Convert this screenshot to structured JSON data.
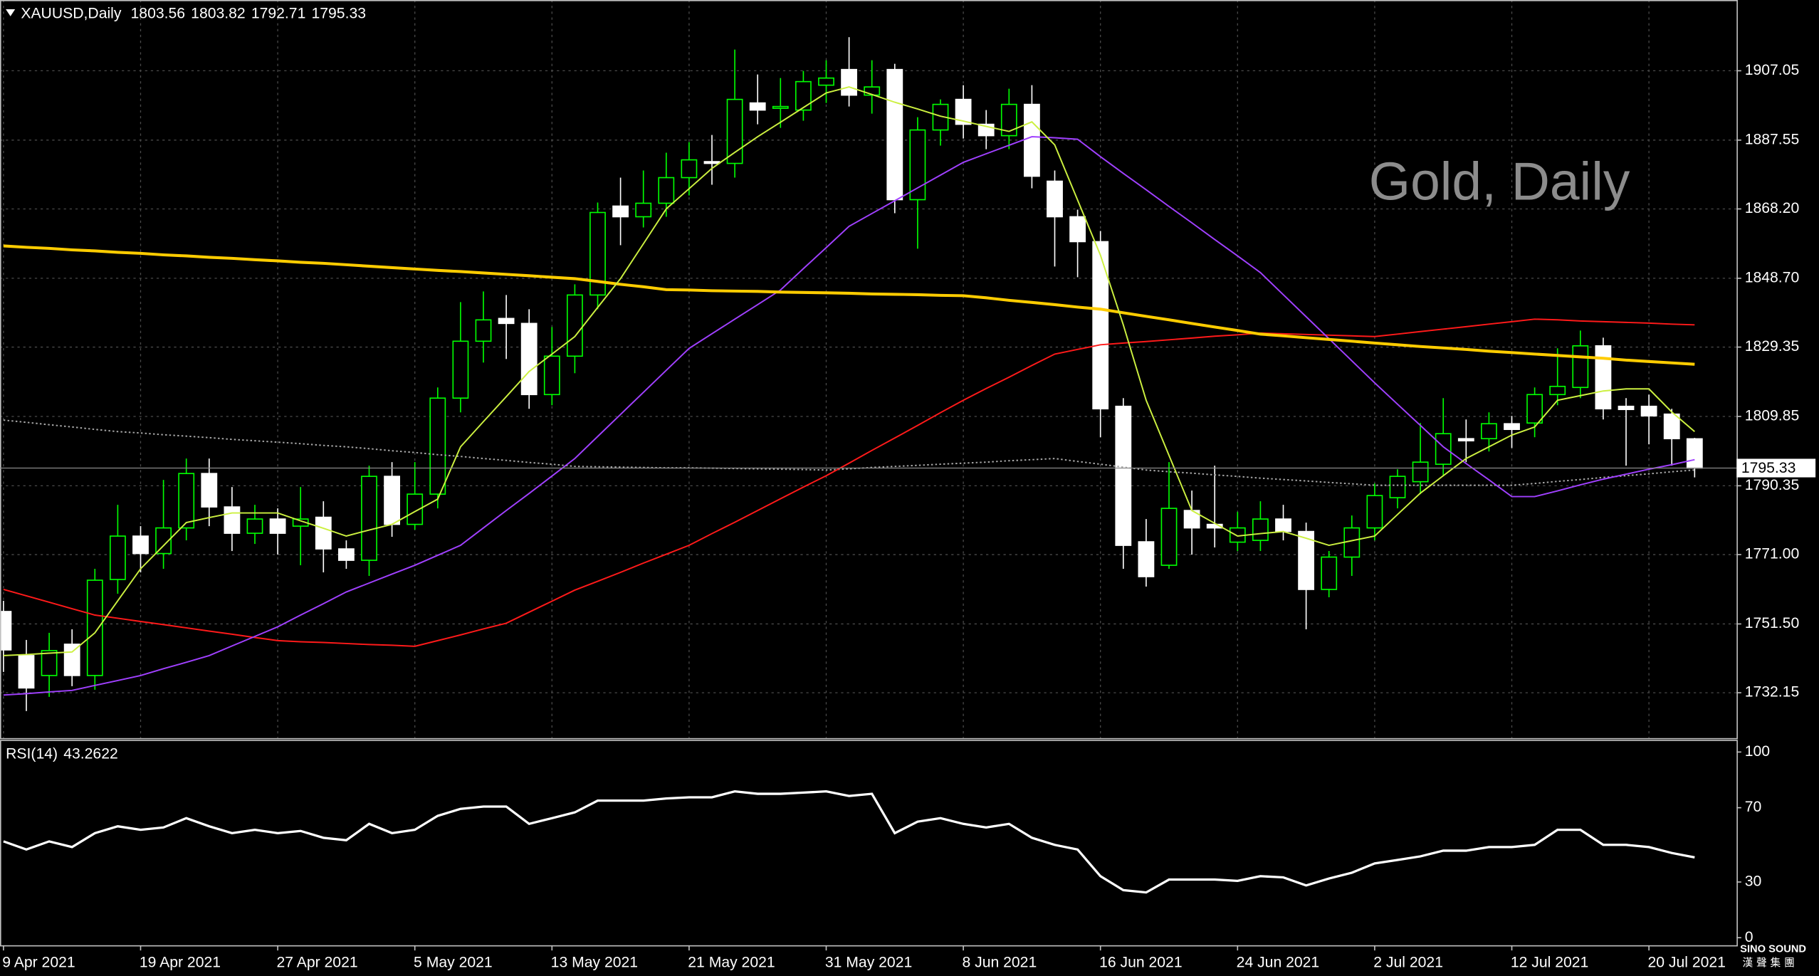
{
  "chart_data": {
    "type": "candlestick",
    "symbol": "XAUUSD,Daily",
    "watermark": "Gold, Daily",
    "categories": [
      "9 Apr 2021",
      null,
      null,
      null,
      null,
      null,
      "19 Apr 2021",
      null,
      null,
      null,
      null,
      null,
      "27 Apr 2021",
      null,
      null,
      null,
      null,
      null,
      "5 May 2021",
      null,
      null,
      null,
      null,
      null,
      "13 May 2021",
      null,
      null,
      null,
      null,
      null,
      "21 May 2021",
      null,
      null,
      null,
      null,
      null,
      "31 May 2021",
      null,
      null,
      null,
      null,
      null,
      "8 Jun 2021",
      null,
      null,
      null,
      null,
      null,
      "16 Jun 2021",
      null,
      null,
      null,
      null,
      null,
      "24 Jun 2021",
      null,
      null,
      null,
      null,
      null,
      "2 Jul 2021",
      null,
      null,
      null,
      null,
      null,
      "12 Jul 2021",
      null,
      null,
      null,
      null,
      null,
      "20 Jul 2021",
      null,
      null
    ],
    "open": [
      1755,
      1742.6,
      1737,
      1745.8,
      1737,
      1764,
      1776.2,
      1771.3,
      1778.5,
      1793.8,
      1784.4,
      1777,
      1781,
      1779,
      1781.5,
      1772.6,
      1769.4,
      1793,
      1779.5,
      1788,
      1815,
      1831,
      1837.4,
      1836,
      1816,
      1826.8,
      1844,
      1869,
      1866,
      1869.8,
      1877,
      1881.5,
      1881,
      1898,
      1896.5,
      1896,
      1903,
      1907.4,
      1900.2,
      1907.4,
      1870.8,
      1890.4,
      1899,
      1892,
      1888.8,
      1897.6,
      1876,
      1866,
      1859,
      1812.7,
      1774.6,
      1768,
      1783.4,
      1779.5,
      1774.5,
      1775,
      1781,
      1777.5,
      1761.2,
      1770.3,
      1778.5,
      1787,
      1791.5,
      1796.4,
      1803.6,
      1803.6,
      1807.8,
      1808,
      1816,
      1818,
      1829.7,
      1812.7,
      1812.7,
      1810.5,
      1803.56
    ],
    "high": [
      1758,
      1747,
      1749,
      1750,
      1767,
      1785,
      1779,
      1792,
      1798,
      1798,
      1790,
      1785,
      1784,
      1790,
      1786,
      1775,
      1796,
      1797,
      1797,
      1818,
      1842,
      1845,
      1844,
      1840,
      1835,
      1847,
      1870,
      1877,
      1879,
      1884,
      1887,
      1889,
      1913,
      1906,
      1905,
      1907,
      1910,
      1916.5,
      1910,
      1909,
      1894,
      1899,
      1903,
      1896,
      1902,
      1903,
      1879,
      1868,
      1862,
      1815,
      1781,
      1797,
      1789,
      1796,
      1783,
      1786,
      1785,
      1780,
      1772,
      1782,
      1791,
      1795,
      1808,
      1815,
      1809,
      1811,
      1810,
      1818,
      1829,
      1834,
      1832,
      1815,
      1816,
      1812,
      1803.82
    ],
    "low": [
      1738,
      1727,
      1731,
      1734,
      1733,
      1760,
      1766,
      1767,
      1775,
      1779,
      1772,
      1774,
      1771,
      1768,
      1766,
      1767,
      1765,
      1776,
      1778,
      1784,
      1811,
      1825,
      1826,
      1812,
      1813,
      1822,
      1840,
      1858,
      1863,
      1866,
      1872,
      1875,
      1877,
      1892,
      1891,
      1893,
      1898,
      1897,
      1895,
      1867,
      1857,
      1886,
      1888,
      1885,
      1885,
      1874,
      1852,
      1849,
      1804,
      1767,
      1762,
      1767,
      1771,
      1773,
      1772,
      1772,
      1775,
      1750,
      1759,
      1765,
      1775,
      1784,
      1788,
      1793,
      1797,
      1800,
      1801,
      1804,
      1813,
      1815,
      1809,
      1796,
      1802,
      1796,
      1792.71
    ],
    "close": [
      1744.2,
      1733.5,
      1744,
      1737,
      1763.8,
      1776.2,
      1771.3,
      1778.5,
      1793.8,
      1784.4,
      1777,
      1781,
      1777,
      1781,
      1772.6,
      1769.4,
      1793,
      1779.5,
      1788,
      1815,
      1831,
      1837,
      1836,
      1816,
      1826.8,
      1844,
      1867.2,
      1866,
      1869.8,
      1877,
      1882,
      1881,
      1899,
      1896,
      1897,
      1904,
      1905,
      1900.2,
      1902.5,
      1870.8,
      1890.4,
      1897.6,
      1892,
      1888.8,
      1897.6,
      1877.4,
      1866,
      1859,
      1812,
      1773.6,
      1764.8,
      1784,
      1778.5,
      1778.5,
      1778.5,
      1781,
      1777.5,
      1761.2,
      1770.3,
      1778.5,
      1787.6,
      1793,
      1797,
      1805,
      1803,
      1807.8,
      1806.2,
      1816,
      1818.3,
      1829.7,
      1812,
      1811.8,
      1810,
      1803.6,
      1795.33
    ],
    "up_color": "#00ff00",
    "down_color": "#ffffff",
    "overlays": [
      {
        "color": "#a8a8a8",
        "style": "dotted",
        "values": [
          1808.8,
          1808.2,
          1807.5,
          1806.9,
          1806.2,
          1805.6,
          1805.2,
          1804.7,
          1804.3,
          1803.9,
          1803.4,
          1803.0,
          1802.6,
          1802.2,
          1801.7,
          1801.3,
          1800.8,
          1800.2,
          1799.7,
          1799.1,
          1798.6,
          1798.0,
          1797.5,
          1796.9,
          1796.4,
          1795.8,
          1795.7,
          1795.6,
          1795.5,
          1795.4,
          1795.4,
          1795.3,
          1795.2,
          1795.1,
          1795.0,
          1794.9,
          1794.8,
          1795.1,
          1795.5,
          1795.8,
          1796.1,
          1796.4,
          1796.7,
          1797.0,
          1797.4,
          1797.7,
          1798.0,
          1797.2,
          1796.4,
          1795.6,
          1794.8,
          1794.3,
          1793.9,
          1793.4,
          1793.0,
          1792.5,
          1792.1,
          1791.7,
          1791.3,
          1790.9,
          1790.5,
          1790.5,
          1790.5,
          1790.5,
          1790.5,
          1790.5,
          1790.5,
          1791.0,
          1791.6,
          1792.1,
          1792.7,
          1793.2,
          1793.7,
          1794.3,
          1794.8
        ]
      },
      {
        "color": "#ff1a1a",
        "style": "solid",
        "values": [
          1761.2,
          1759.4,
          1757.6,
          1755.8,
          1754.0,
          1753.1,
          1752.2,
          1751.3,
          1750.4,
          1749.5,
          1748.6,
          1747.7,
          1746.8,
          1746.5,
          1746.3,
          1746.0,
          1745.7,
          1745.5,
          1745.2,
          1746.8,
          1748.4,
          1750.1,
          1751.7,
          1754.8,
          1757.9,
          1761.0,
          1763.5,
          1766.0,
          1768.6,
          1771.1,
          1773.6,
          1776.9,
          1780.1,
          1783.4,
          1786.7,
          1790.0,
          1793.2,
          1796.7,
          1800.3,
          1803.8,
          1807.3,
          1810.9,
          1814.4,
          1817.7,
          1820.9,
          1824.2,
          1827.4,
          1828.7,
          1830.0,
          1830.5,
          1830.9,
          1831.4,
          1831.9,
          1832.4,
          1832.8,
          1833.3,
          1833.1,
          1832.9,
          1832.7,
          1832.5,
          1832.3,
          1833.0,
          1833.7,
          1834.4,
          1835.1,
          1835.8,
          1836.5,
          1837.2,
          1837.0,
          1836.7,
          1836.5,
          1836.3,
          1836.1,
          1835.8,
          1835.6
        ]
      },
      {
        "color": "#a040ff",
        "style": "solid",
        "values": [
          1731.5,
          1731.9,
          1732.4,
          1732.8,
          1734.2,
          1735.6,
          1737.0,
          1738.9,
          1740.7,
          1742.6,
          1745.3,
          1748.0,
          1750.7,
          1754.0,
          1757.2,
          1760.5,
          1763.0,
          1765.5,
          1768.0,
          1770.8,
          1773.6,
          1778.5,
          1783.4,
          1788.2,
          1793.1,
          1798.0,
          1804.2,
          1810.4,
          1816.6,
          1822.8,
          1829.0,
          1833.1,
          1837.2,
          1841.3,
          1845.4,
          1851.4,
          1857.3,
          1863.3,
          1866.9,
          1870.5,
          1874.1,
          1877.7,
          1881.3,
          1883.7,
          1886.1,
          1888.5,
          1888.2,
          1887.8,
          1882.9,
          1878.2,
          1873.6,
          1868.9,
          1864.3,
          1859.6,
          1855.0,
          1850.3,
          1844.1,
          1837.9,
          1831.7,
          1825.5,
          1819.3,
          1813.3,
          1807.3,
          1801.3,
          1796.6,
          1792.0,
          1787.3,
          1787.3,
          1788.9,
          1790.6,
          1792.2,
          1793.6,
          1795.0,
          1796.3,
          1797.7
        ]
      },
      {
        "color": "#ffcc00",
        "style": "bold",
        "values": [
          1857.8,
          1857.4,
          1857.1,
          1856.7,
          1856.4,
          1856.0,
          1855.7,
          1855.3,
          1855.0,
          1854.6,
          1854.3,
          1853.9,
          1853.6,
          1853.2,
          1852.9,
          1852.5,
          1852.1,
          1851.7,
          1851.3,
          1850.9,
          1850.6,
          1850.2,
          1849.8,
          1849.4,
          1849.0,
          1848.6,
          1847.8,
          1847.0,
          1846.3,
          1845.5,
          1845.4,
          1845.2,
          1845.1,
          1845.0,
          1844.8,
          1844.7,
          1844.6,
          1844.5,
          1844.3,
          1844.2,
          1844.1,
          1843.9,
          1843.8,
          1843.2,
          1842.5,
          1841.9,
          1841.3,
          1840.6,
          1840.0,
          1839.0,
          1838.0,
          1837.0,
          1836.0,
          1835.0,
          1834.0,
          1833.0,
          1832.5,
          1832.0,
          1831.5,
          1831.0,
          1830.5,
          1830.0,
          1829.5,
          1829.1,
          1828.7,
          1828.2,
          1827.8,
          1827.4,
          1827.0,
          1826.6,
          1826.2,
          1825.7,
          1825.3,
          1824.9,
          1824.5
        ]
      },
      {
        "color": "#ccf040",
        "style": "solid",
        "values": [
          1742.6,
          1742.9,
          1743.3,
          1743.6,
          1749.0,
          1758.0,
          1767.0,
          1773.5,
          1780.0,
          1781.4,
          1782.7,
          1782.7,
          1782.7,
          1780.5,
          1778.4,
          1776.2,
          1777.9,
          1779.5,
          1783.1,
          1786.6,
          1801.3,
          1808.4,
          1815.4,
          1822.5,
          1827.4,
          1832.3,
          1840.5,
          1848.6,
          1858.4,
          1868.2,
          1873.9,
          1879.6,
          1884.1,
          1888.5,
          1892.6,
          1896.7,
          1900.8,
          1902.5,
          1900.4,
          1898.2,
          1896.3,
          1894.3,
          1892.9,
          1891.4,
          1890.0,
          1892.7,
          1886.2,
          1870.7,
          1855.2,
          1835.6,
          1814.4,
          1798.9,
          1783.4,
          1779.8,
          1776.2,
          1776.9,
          1777.5,
          1775.6,
          1773.6,
          1774.9,
          1776.2,
          1782.3,
          1788.3,
          1793.2,
          1798.0,
          1801.3,
          1804.6,
          1806.9,
          1814.4,
          1815.7,
          1817.0,
          1817.6,
          1817.6,
          1811.1,
          1805.6
        ]
      }
    ],
    "ylim": [
      1719.4,
      1926.95
    ],
    "yticks": [
      1907.05,
      1887.55,
      {
        "value": 1868.2,
        "label": "1868.20"
      },
      {
        "value": 1848.7,
        "label": "1848.70"
      },
      1829.35,
      1809.85,
      1790.35,
      {
        "value": 1771,
        "label": "1771.00"
      },
      {
        "value": 1751.5,
        "label": "1751.50"
      },
      1732.15
    ],
    "grid": true,
    "rsi": {
      "label": "RSI(14)",
      "color": "#ffffff",
      "values": [
        51.9,
        47.5,
        51.9,
        48.8,
        56.3,
        60,
        58.1,
        59.4,
        64.4,
        60,
        56.3,
        58.1,
        56.3,
        57.5,
        53.8,
        52.5,
        61.3,
        56.3,
        58.1,
        65.6,
        69.4,
        70.6,
        70.6,
        61.3,
        64.4,
        67.5,
        73.8,
        73.8,
        73.8,
        75,
        75.6,
        75.6,
        78.8,
        77.5,
        77.5,
        78.1,
        78.8,
        76.3,
        77.5,
        56.3,
        62.5,
        64.4,
        61.3,
        59.4,
        61.3,
        53.8,
        50,
        47.5,
        33.1,
        25.6,
        24.4,
        31.3,
        31.3,
        31.3,
        30.6,
        33.1,
        32.5,
        28.1,
        31.9,
        35,
        40,
        41.9,
        43.8,
        46.9,
        46.9,
        48.8,
        48.8,
        50,
        58.1,
        58.1,
        50,
        50,
        48.8,
        45.6,
        43.2622
      ],
      "ylim": [
        0,
        100
      ],
      "yticks": [
        100,
        70,
        30,
        0
      ]
    },
    "logo": {
      "name": "SINO SOUND",
      "subtitle": "漢聲集團"
    }
  }
}
